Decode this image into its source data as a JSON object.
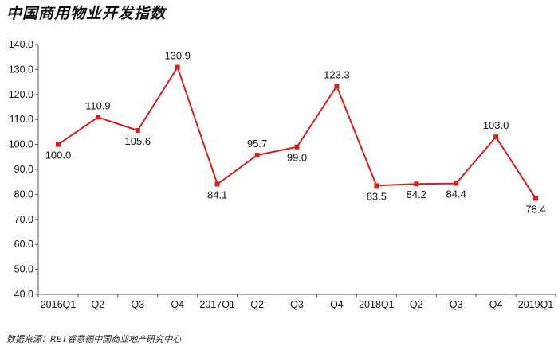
{
  "title": "中国商用物业开发指数",
  "source": "数据来源：RET睿意德中国商业地产研究中心",
  "colors": {
    "line": "#d81e1e",
    "axis": "#555555",
    "text": "#111111"
  },
  "chart_data": {
    "type": "line",
    "title": "中国商用物业开发指数",
    "xlabel": "",
    "ylabel": "",
    "categories": [
      "2016Q1",
      "Q2",
      "Q3",
      "Q4",
      "2017Q1",
      "Q2",
      "Q3",
      "Q4",
      "2018Q1",
      "Q2",
      "Q3",
      "Q4",
      "2019Q1"
    ],
    "series": [
      {
        "values": [
          100.0,
          110.9,
          105.6,
          130.9,
          84.1,
          95.7,
          99.0,
          123.3,
          83.5,
          84.2,
          84.4,
          103.0,
          78.4
        ]
      }
    ],
    "data_labels": [
      "100.0",
      "110.9",
      "105.6",
      "130.9",
      "84.1",
      "95.7",
      "99.0",
      "123.3",
      "83.5",
      "84.2",
      "84.4",
      "103.0",
      "78.4"
    ],
    "label_positions": [
      "below",
      "above",
      "below",
      "above",
      "below",
      "above",
      "below",
      "above",
      "below",
      "below",
      "below",
      "above",
      "below"
    ],
    "ylim": [
      40.0,
      140.0
    ],
    "yticks": [
      "140.0",
      "130.0",
      "120.0",
      "110.0",
      "100.0",
      "90.0",
      "80.0",
      "70.0",
      "60.0",
      "50.0",
      "40.0"
    ],
    "ytick_values": [
      140,
      130,
      120,
      110,
      100,
      90,
      80,
      70,
      60,
      50,
      40
    ],
    "grid": false,
    "legend": "none"
  }
}
